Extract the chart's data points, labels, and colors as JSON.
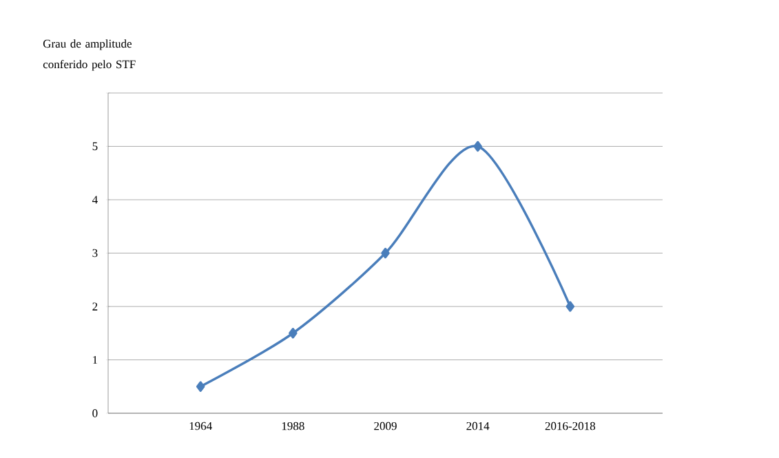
{
  "chart_data": {
    "type": "line",
    "ylabel": "Grau de amplitude conferido pelo STF",
    "categories": [
      "1964",
      "1988",
      "2009",
      "2014",
      "2016-2018"
    ],
    "series": [
      {
        "color": "#4a7ebb",
        "values": [
          0.5,
          1.5,
          3,
          5,
          2
        ]
      }
    ],
    "ylim": [
      0,
      6
    ],
    "yticks": [
      0,
      1,
      2,
      3,
      4,
      5,
      {
        "value": 6,
        "label": null
      }
    ],
    "grid": "y",
    "marker": "diamond",
    "line_style": "solid"
  }
}
